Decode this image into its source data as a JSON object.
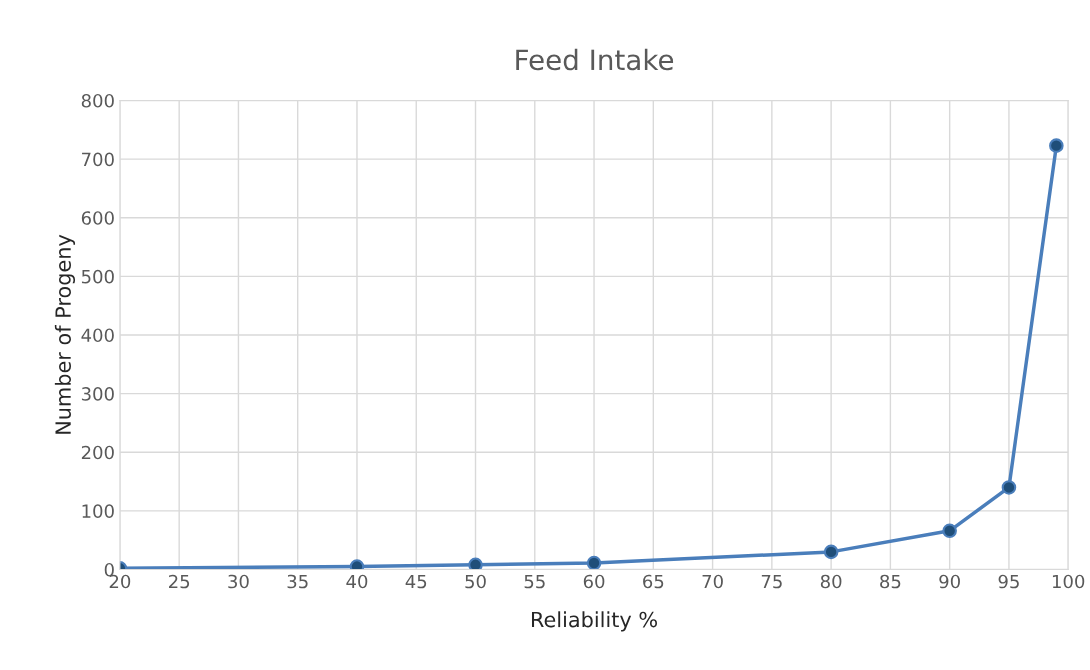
{
  "chart_data": {
    "type": "line",
    "title": "Feed Intake",
    "xlabel": "Reliability %",
    "ylabel": "Number of Progeny",
    "x": [
      20,
      40,
      50,
      60,
      80,
      90,
      95,
      99
    ],
    "series": [
      {
        "color": "#4a7ebb",
        "values": [
          2,
          5,
          8,
          11,
          30,
          66,
          140,
          723
        ]
      }
    ],
    "xlim": [
      20,
      100
    ],
    "xticks": [
      20,
      25,
      30,
      35,
      40,
      45,
      50,
      55,
      60,
      65,
      70,
      75,
      80,
      85,
      90,
      95,
      100
    ],
    "ylim": [
      0,
      800
    ],
    "yticks": [
      0,
      100,
      200,
      300,
      400,
      500,
      600,
      700,
      800
    ],
    "grid": true,
    "marker": "circle",
    "line_style": "solid"
  }
}
